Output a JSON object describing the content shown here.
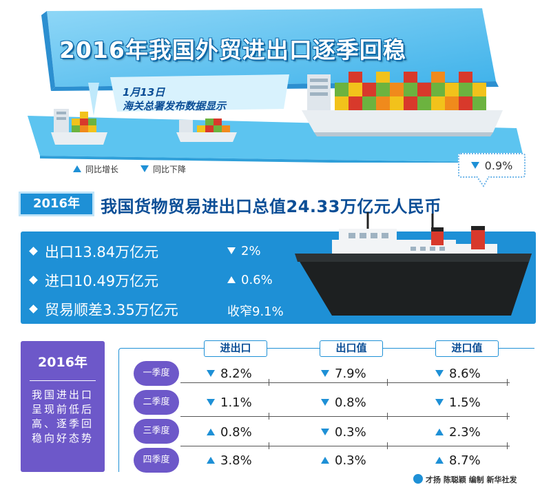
{
  "banner": {
    "title": "2016年我国外贸进出口逐季回稳",
    "date": "1月13日",
    "source_line": "海关总署发布数据显示"
  },
  "legend": {
    "up_label": "同比增长",
    "down_label": "同比下降"
  },
  "callout": {
    "direction": "down",
    "value": "0.9%"
  },
  "headline": {
    "year": "2016年",
    "text": "我国货物贸易进出口总值24.33万亿元人民币"
  },
  "summary": [
    {
      "label": "出口13.84万亿元",
      "direction": "down",
      "change": "2%"
    },
    {
      "label": "进口10.49万亿元",
      "direction": "up",
      "change": "0.6%"
    },
    {
      "label": "贸易顺差3.35万亿元",
      "direction": "none",
      "change": "收窄9.1%"
    }
  ],
  "side_card": {
    "year": "2016年",
    "description": "我国进出口呈现前低后高、逐季回稳向好态势"
  },
  "table": {
    "columns": [
      "进出口",
      "出口值",
      "进口值"
    ],
    "rows": [
      {
        "quarter": "一季度",
        "cells": [
          {
            "dir": "down",
            "val": "8.2%"
          },
          {
            "dir": "down",
            "val": "7.9%"
          },
          {
            "dir": "down",
            "val": "8.6%"
          }
        ]
      },
      {
        "quarter": "二季度",
        "cells": [
          {
            "dir": "down",
            "val": "1.1%"
          },
          {
            "dir": "down",
            "val": "0.8%"
          },
          {
            "dir": "down",
            "val": "1.5%"
          }
        ]
      },
      {
        "quarter": "三季度",
        "cells": [
          {
            "dir": "up",
            "val": "0.8%"
          },
          {
            "dir": "down",
            "val": "0.3%"
          },
          {
            "dir": "up",
            "val": "2.3%"
          }
        ]
      },
      {
        "quarter": "四季度",
        "cells": [
          {
            "dir": "up",
            "val": "3.8%"
          },
          {
            "dir": "up",
            "val": "0.3%"
          },
          {
            "dir": "up",
            "val": "8.7%"
          }
        ]
      }
    ]
  },
  "credit": "才扬 陈聪颖 编制 新华社发",
  "colors": {
    "primary_blue": "#1e90d6",
    "dark_blue": "#0b4e96",
    "purple": "#6d58c9",
    "container_red": "#d8392b",
    "container_green": "#6cb33f",
    "container_yellow": "#f2c21b",
    "container_orange": "#f08a1c"
  }
}
